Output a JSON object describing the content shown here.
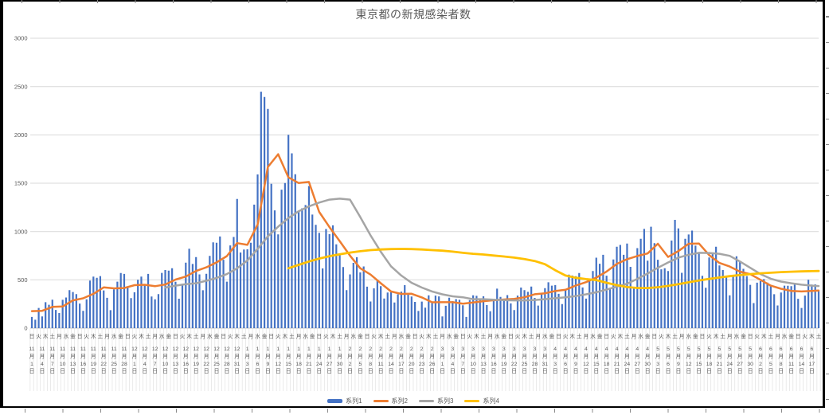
{
  "chart_data": {
    "type": "combo",
    "title": "東京都の新規感染者数",
    "ylim": [
      0,
      3000
    ],
    "y_ticks": [
      0,
      500,
      1000,
      1500,
      2000,
      2500,
      3000
    ],
    "grid": "horizontal",
    "legend_position": "bottom",
    "x_axis": {
      "weekday_interval_days": 2,
      "weekday_labels": "日火木土月水金日火木土月水金日火木土月水金日火木土月水金日火木土月水金日火木土月水金日火木土月水金日火木土月水金日火木土月水金日火木土月水金日火木土月水金日火木土月水金日火木土月水金日火木土月水金日火木土月水金日火木土月水金日火木土",
      "date_interval_days": 3,
      "date_labels": [
        "11月1日",
        "11月4日",
        "11月7日",
        "11月10日",
        "11月13日",
        "11月16日",
        "11月19日",
        "11月22日",
        "11月25日",
        "11月28日",
        "12月1日",
        "12月4日",
        "12月7日",
        "12月10日",
        "12月13日",
        "12月16日",
        "12月19日",
        "12月22日",
        "12月25日",
        "12月28日",
        "12月31日",
        "1月3日",
        "1月6日",
        "1月9日",
        "1月12日",
        "1月15日",
        "1月18日",
        "1月21日",
        "1月24日",
        "1月27日",
        "1月30日",
        "2月2日",
        "2月5日",
        "2月8日",
        "2月11日",
        "2月14日",
        "2月17日",
        "2月20日",
        "2月23日",
        "2月26日",
        "3月1日",
        "3月4日",
        "3月7日",
        "3月10日",
        "3月13日",
        "3月16日",
        "3月19日",
        "3月22日",
        "3月25日",
        "3月28日",
        "3月31日",
        "4月3日",
        "4月6日",
        "4月9日",
        "4月12日",
        "4月15日",
        "4月18日",
        "4月21日",
        "4月24日",
        "4月27日",
        "4月30日",
        "5月3日",
        "5月6日",
        "5月9日",
        "5月12日",
        "5月15日",
        "5月18日",
        "5月21日",
        "5月24日",
        "5月27日",
        "5月30日",
        "6月2日",
        "6月5日",
        "6月8日",
        "6月11日",
        "6月14日",
        "6月17日"
      ]
    },
    "series": [
      {
        "name": "系列1",
        "type": "bar",
        "color": "#4472C4",
        "interval_days": 1,
        "values": [
          116,
          87,
          209,
          122,
          269,
          242,
          294,
          189,
          157,
          293,
          317,
          393,
          374,
          352,
          255,
          180,
          298,
          493,
          534,
          522,
          539,
          391,
          314,
          186,
          401,
          481,
          570,
          561,
          418,
          311,
          372,
          500,
          533,
          449,
          561,
          327,
          299,
          352,
          572,
          602,
          595,
          621,
          480,
          305,
          460,
          678,
          822,
          664,
          736,
          556,
          392,
          563,
          748,
          888,
          884,
          949,
          708,
          481,
          856,
          944,
          1337,
          783,
          814,
          816,
          884,
          1278,
          1591,
          2447,
          2392,
          2268,
          1494,
          1219,
          970,
          1433,
          1502,
          2001,
          1809,
          1592,
          1204,
          1240,
          1274,
          1471,
          1175,
          1070,
          986,
          618,
          1026,
          973,
          1064,
          868,
          769,
          633,
          393,
          556,
          676,
          734,
          577,
          639,
          429,
          276,
          412,
          491,
          434,
          307,
          369,
          371,
          266,
          350,
          378,
          445,
          353,
          327,
          272,
          178,
          275,
          213,
          340,
          270,
          337,
          329,
          121,
          232,
          316,
          279,
          301,
          293,
          237,
          116,
          290,
          340,
          335,
          304,
          330,
          239,
          175,
          300,
          409,
          323,
          303,
          342,
          256,
          187,
          337,
          420,
          394,
          376,
          430,
          313,
          234,
          364,
          414,
          475,
          440,
          446,
          355,
          249,
          399,
          555,
          545,
          537,
          570,
          421,
          306,
          510,
          591,
          729,
          667,
          759,
          543,
          405,
          711,
          843,
          861,
          759,
          876,
          635,
          425,
          828,
          925,
          1027,
          698,
          1050,
          879,
          708,
          609,
          621,
          591,
          907,
          1121,
          1032,
          573,
          925,
          969,
          1010,
          854,
          772,
          542,
          419,
          732,
          766,
          843,
          649,
          602,
          535,
          340,
          542,
          743,
          684,
          614,
          539,
          448,
          260,
          471,
          487,
          508,
          472,
          436,
          351,
          235,
          369,
          440,
          439,
          435,
          467,
          304,
          209,
          337,
          501,
          452,
          453,
          388
        ]
      },
      {
        "name": "系列2",
        "type": "line",
        "color": "#ED7D31",
        "interval_days": 3,
        "values": [
          176,
          180,
          220,
          224,
          288,
          309,
          355,
          422,
          412,
          415,
          445,
          449,
          434,
          452,
          503,
          534,
          592,
          630,
          681,
          746,
          880,
          862,
          1072,
          1668,
          1800,
          1560,
          1502,
          1513,
          1203,
          1046,
          901,
          751,
          620,
          555,
          465,
          380,
          354,
          356,
          318,
          268,
          269,
          269,
          254,
          265,
          279,
          289,
          297,
          303,
          320,
          351,
          361,
          384,
          397,
          441,
          476,
          523,
          586,
          665,
          714,
          747,
          773,
          874,
          737,
          798,
          874,
          876,
          757,
          675,
          638,
          585,
          559,
          500,
          440,
          408,
          386,
          380,
          386,
          390
        ]
      },
      {
        "name": "系列3",
        "type": "line",
        "color": "#A5A5A5",
        "interval_days": 3,
        "values": [
          null,
          null,
          null,
          null,
          null,
          null,
          null,
          null,
          null,
          null,
          null,
          null,
          null,
          420,
          440,
          455,
          465,
          490,
          520,
          560,
          620,
          700,
          820,
          950,
          1050,
          1140,
          1210,
          1260,
          1300,
          1330,
          1340,
          1330,
          1150,
          960,
          790,
          640,
          545,
          470,
          420,
          380,
          350,
          330,
          320,
          300,
          300,
          295,
          290,
          288,
          288,
          292,
          300,
          310,
          320,
          332,
          350,
          372,
          400,
          430,
          460,
          510,
          565,
          625,
          680,
          730,
          760,
          780,
          778,
          770,
          748,
          690,
          625,
          560,
          512,
          482,
          465,
          450,
          440,
          436
        ]
      },
      {
        "name": "系列4",
        "type": "line",
        "color": "#FFC000",
        "interval_days": 3,
        "values": [
          null,
          null,
          null,
          null,
          null,
          null,
          null,
          null,
          null,
          null,
          null,
          null,
          null,
          null,
          null,
          null,
          null,
          null,
          null,
          null,
          null,
          null,
          null,
          null,
          null,
          620,
          655,
          690,
          720,
          745,
          765,
          782,
          796,
          808,
          814,
          818,
          820,
          818,
          814,
          808,
          802,
          792,
          780,
          770,
          762,
          752,
          742,
          730,
          715,
          695,
          662,
          600,
          545,
          522,
          508,
          498,
          470,
          445,
          425,
          416,
          415,
          424,
          438,
          455,
          475,
          494,
          510,
          524,
          538,
          550,
          560,
          568,
          574,
          580,
          584,
          588,
          590,
          592
        ]
      }
    ],
    "legend": [
      {
        "label": "系列1",
        "color": "#4472C4",
        "marker": "bar"
      },
      {
        "label": "系列2",
        "color": "#ED7D31",
        "marker": "line"
      },
      {
        "label": "系列3",
        "color": "#A5A5A5",
        "marker": "line"
      },
      {
        "label": "系列4",
        "color": "#FFC000",
        "marker": "line"
      }
    ],
    "colors": {
      "gridline": "#D9D9D9",
      "axis_text": "#595959",
      "category_separator": "#E1E1E1"
    }
  }
}
